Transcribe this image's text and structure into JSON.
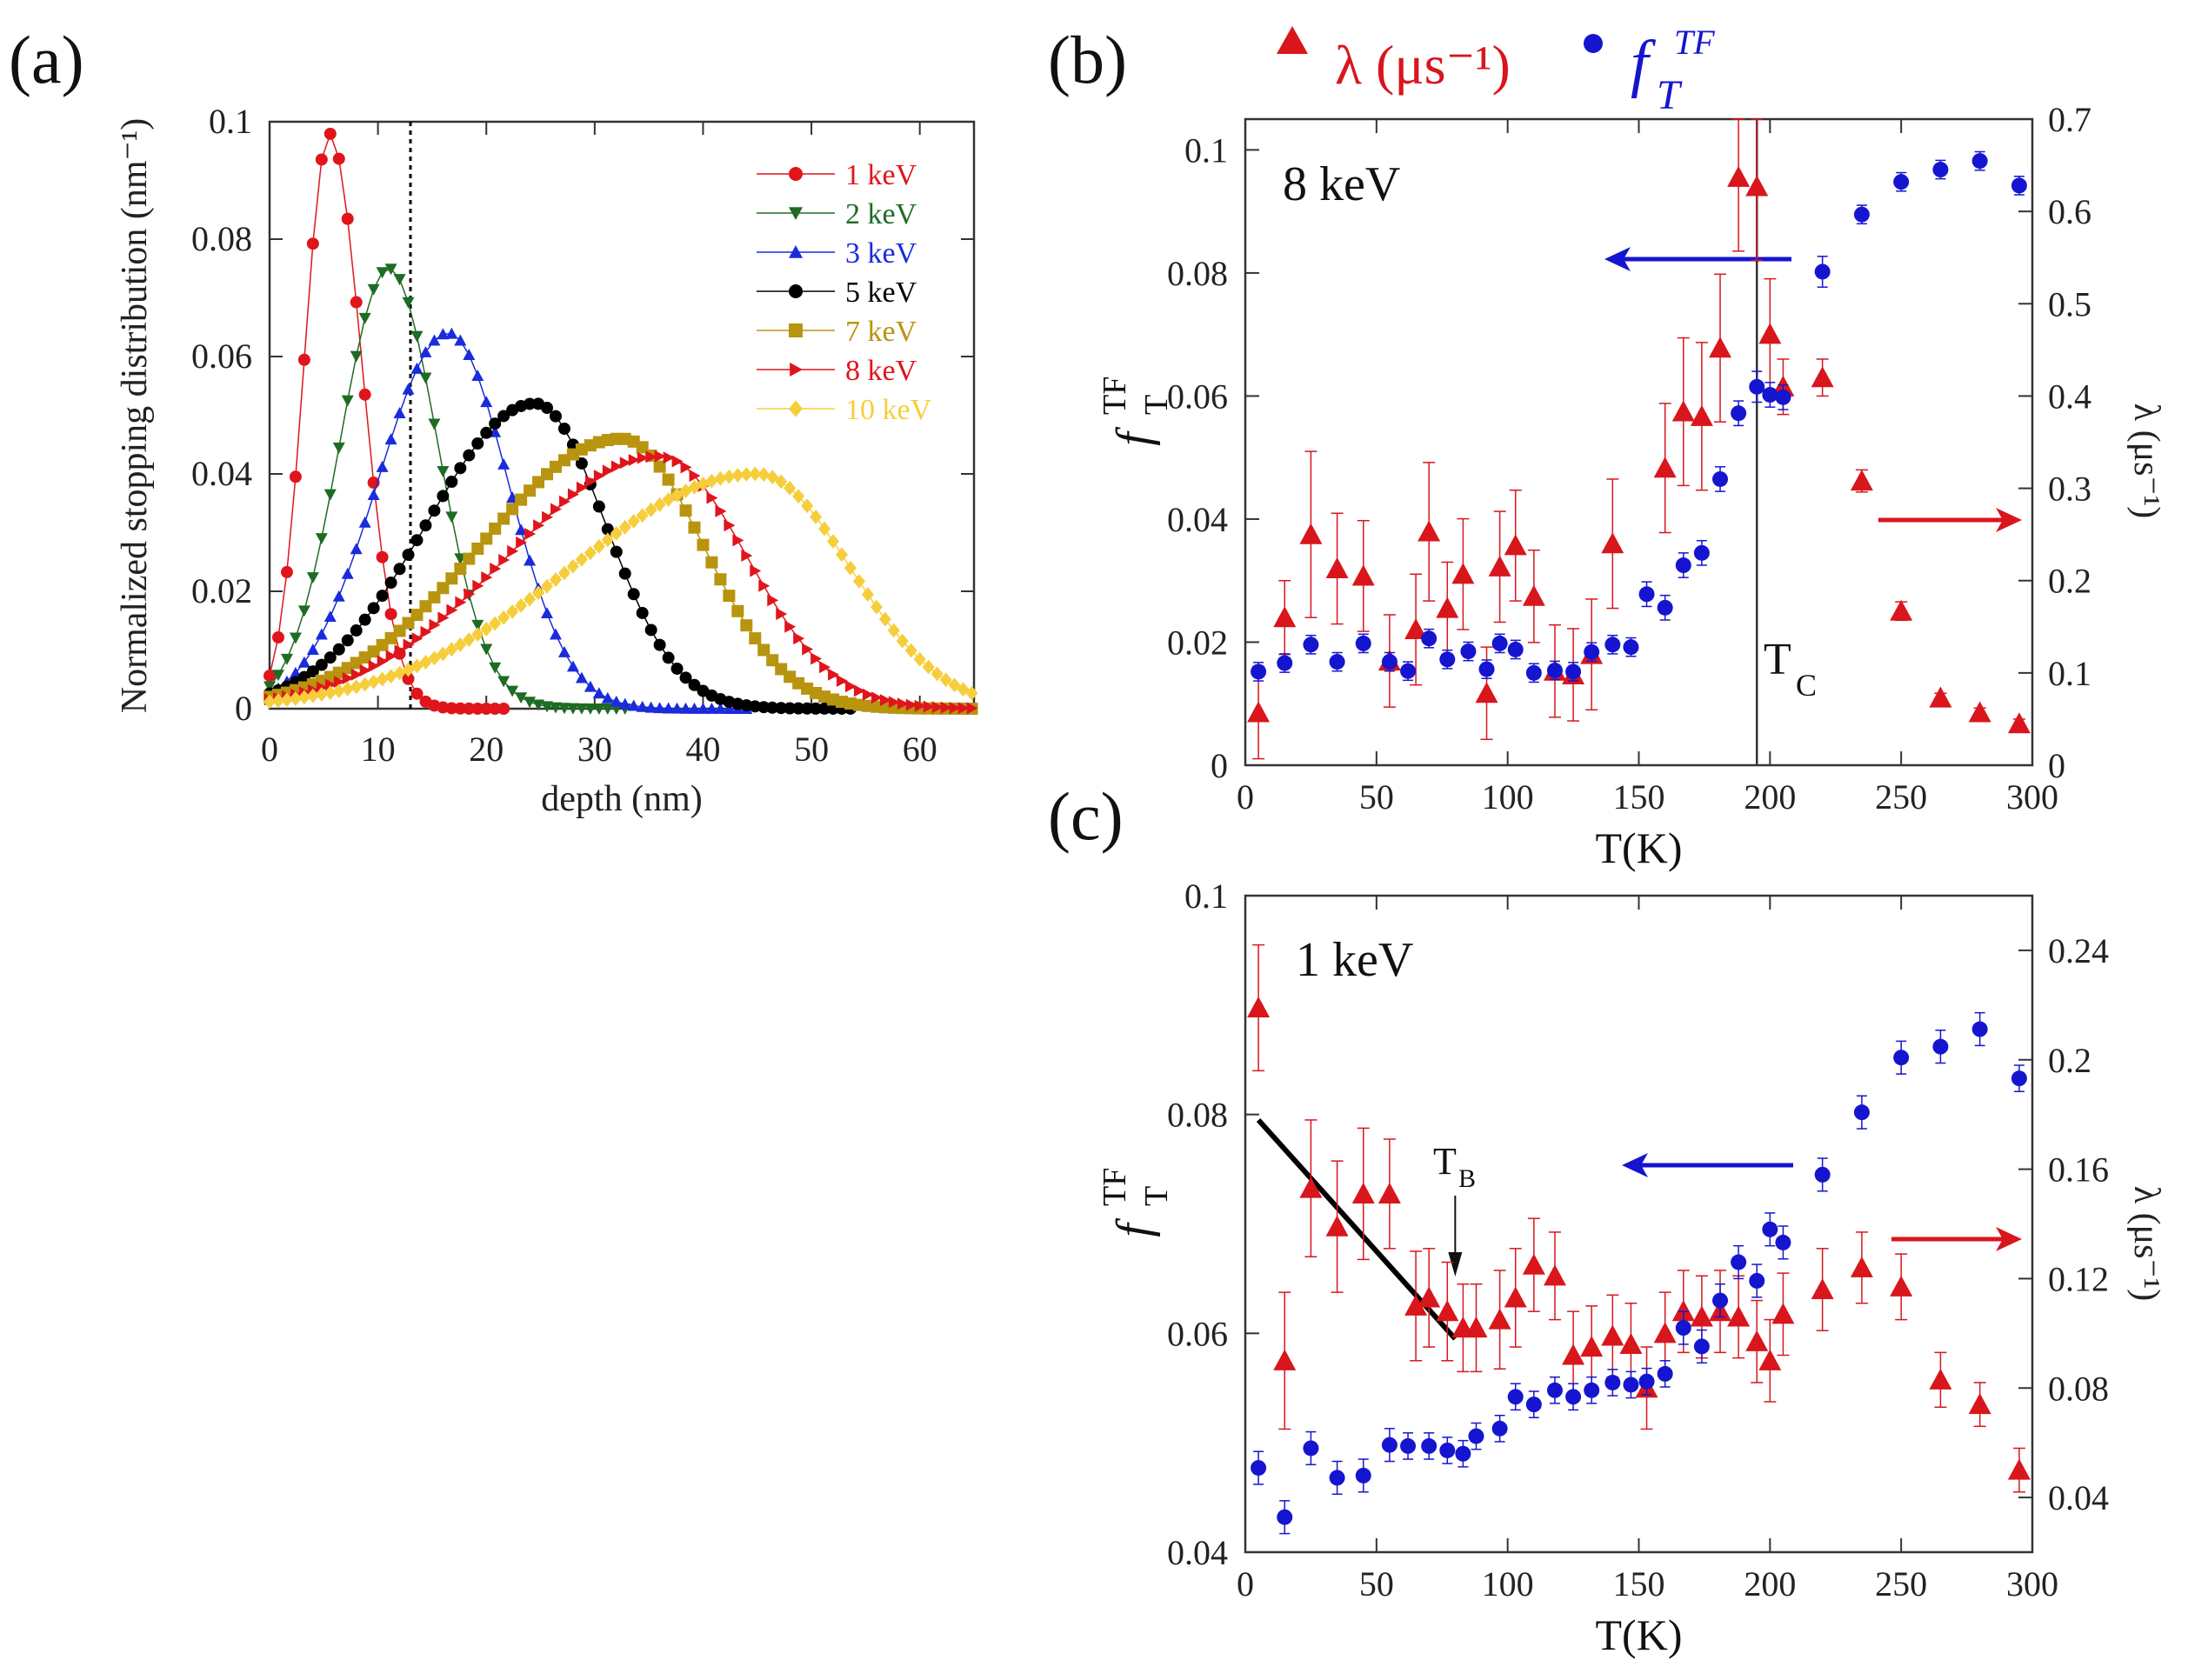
{
  "chart_data": [
    {
      "id": "a",
      "panel_label": "(a)",
      "type": "line",
      "xlabel": "depth (nm)",
      "ylabel": "Normalized stopping distribution (nm⁻¹)",
      "xlim": [
        0,
        65
      ],
      "ylim": [
        0,
        0.1
      ],
      "xticks": [
        "0",
        "10",
        "20",
        "30",
        "40",
        "50",
        "60"
      ],
      "yticks": [
        "0",
        "0.02",
        "0.04",
        "0.06",
        "0.08",
        "0.1"
      ],
      "dotted_line_x": 13,
      "legend_position": "top-right",
      "series": [
        {
          "name": "1 keV",
          "color": "#e0151b",
          "marker": "circle",
          "peak": 0.098,
          "mode": 5.5,
          "sigma_left": 2.3,
          "sigma_right": 3.0,
          "end": 22
        },
        {
          "name": "2 keV",
          "color": "#1e6b23",
          "marker": "triangle-down",
          "peak": 0.075,
          "mode": 11,
          "sigma_left": 4.5,
          "sigma_right": 4.5,
          "end": 33
        },
        {
          "name": "3 keV",
          "color": "#1a2bdc",
          "marker": "triangle-up",
          "peak": 0.064,
          "mode": 16.5,
          "sigma_left": 6.5,
          "sigma_right": 5.5,
          "end": 44
        },
        {
          "name": "5 keV",
          "color": "#000000",
          "marker": "circle",
          "peak": 0.052,
          "mode": 24.5,
          "sigma_left": 10,
          "sigma_right": 6.5,
          "end": 54
        },
        {
          "name": "7 keV",
          "color": "#b8940f",
          "marker": "square",
          "peak": 0.046,
          "mode": 32.5,
          "sigma_left": 13,
          "sigma_right": 7.5,
          "end": 65
        },
        {
          "name": "8 keV",
          "color": "#e0151b",
          "marker": "triangle-right",
          "peak": 0.043,
          "mode": 36,
          "sigma_left": 14,
          "sigma_right": 8,
          "end": 65
        },
        {
          "name": "10 keV",
          "color": "#f6ce3c",
          "marker": "diamond",
          "peak": 0.04,
          "mode": 45,
          "sigma_left": 17,
          "sigma_right": 8.5,
          "end": 65
        }
      ]
    },
    {
      "id": "b",
      "panel_label": "(b)",
      "type": "scatter",
      "energy_label": "8 keV",
      "xlabel": "T(K)",
      "ylabel_main": "f",
      "ylabel_sub": "T",
      "ylabel_sup": "TF",
      "y2label": "λ (μs⁻¹)",
      "xlim": [
        0,
        300
      ],
      "ylim": [
        0,
        0.105
      ],
      "y2lim": [
        0,
        0.7
      ],
      "xticks": [
        "0",
        "50",
        "100",
        "150",
        "200",
        "250",
        "300"
      ],
      "yticks": [
        "0",
        "0.02",
        "0.04",
        "0.06",
        "0.08",
        "0.1"
      ],
      "y2ticks": [
        "0",
        "0.1",
        "0.2",
        "0.3",
        "0.4",
        "0.5",
        "0.6",
        "0.7"
      ],
      "tc_label": "T",
      "tc_sub": "C",
      "tc_value": 195,
      "fT": {
        "name": "f_T^TF",
        "color": "#1515d0",
        "x": [
          5,
          15,
          25,
          35,
          45,
          55,
          62,
          70,
          77,
          85,
          92,
          97,
          103,
          110,
          118,
          125,
          132,
          140,
          147,
          153,
          160,
          167,
          174,
          181,
          188,
          195,
          200,
          205,
          220,
          235,
          250,
          265,
          280,
          295
        ],
        "y": [
          0.0152,
          0.0166,
          0.0196,
          0.0168,
          0.0198,
          0.0168,
          0.0153,
          0.0206,
          0.0172,
          0.0185,
          0.0156,
          0.0198,
          0.0188,
          0.015,
          0.0154,
          0.0152,
          0.0184,
          0.0196,
          0.0192,
          0.0278,
          0.0256,
          0.0325,
          0.0345,
          0.0465,
          0.0572,
          0.0615,
          0.0602,
          0.0598,
          0.0802,
          0.0895,
          0.0948,
          0.0968,
          0.0982,
          0.0942
        ],
        "err": [
          0.0015,
          0.0015,
          0.0015,
          0.0015,
          0.0015,
          0.0015,
          0.0015,
          0.0015,
          0.0015,
          0.0015,
          0.0015,
          0.0015,
          0.0015,
          0.0015,
          0.0015,
          0.0015,
          0.0015,
          0.0015,
          0.0015,
          0.002,
          0.002,
          0.002,
          0.002,
          0.002,
          0.002,
          0.0025,
          0.002,
          0.002,
          0.0025,
          0.0015,
          0.0015,
          0.0015,
          0.0015,
          0.0015
        ]
      },
      "lambda": {
        "name": "λ (μs⁻¹)",
        "color": "#d8161c",
        "x": [
          5,
          15,
          25,
          35,
          45,
          55,
          65,
          70,
          77,
          83,
          92,
          97,
          103,
          110,
          118,
          125,
          132,
          140,
          160,
          167,
          174,
          181,
          188,
          195,
          200,
          205,
          220,
          235,
          250,
          265,
          280,
          295
        ],
        "y": [
          0.057,
          0.16,
          0.25,
          0.213,
          0.205,
          0.113,
          0.147,
          0.253,
          0.17,
          0.207,
          0.078,
          0.215,
          0.238,
          0.183,
          0.102,
          0.098,
          0.12,
          0.24,
          0.322,
          0.383,
          0.378,
          0.452,
          0.637,
          0.627,
          0.467,
          0.41,
          0.42,
          0.308,
          0.167,
          0.073,
          0.057,
          0.045
        ],
        "err": [
          0.05,
          0.04,
          0.09,
          0.06,
          0.06,
          0.05,
          0.06,
          0.075,
          0.05,
          0.06,
          0.05,
          0.06,
          0.06,
          0.05,
          0.05,
          0.05,
          0.06,
          0.07,
          0.07,
          0.08,
          0.08,
          0.08,
          0.08,
          0.08,
          0.06,
          0.03,
          0.02,
          0.012,
          0.01,
          0.005,
          0.005,
          0.005
        ]
      },
      "arrow_to_left_axis_color": "#1515d0",
      "arrow_to_right_axis_color": "#d8161c"
    },
    {
      "id": "c",
      "panel_label": "(c)",
      "type": "scatter",
      "energy_label": "1 keV",
      "xlabel": "T(K)",
      "ylabel_main": "f",
      "ylabel_sub": "T",
      "ylabel_sup": "TF",
      "y2label": "λ (μs⁻¹)",
      "xlim": [
        0,
        300
      ],
      "ylim": [
        0.04,
        0.1
      ],
      "y2lim": [
        0.02,
        0.26
      ],
      "xticks": [
        "0",
        "50",
        "100",
        "150",
        "200",
        "250",
        "300"
      ],
      "yticks": [
        "0.04",
        "0.06",
        "0.08",
        "0.1"
      ],
      "y2ticks": [
        "0.04",
        "0.08",
        "0.12",
        "0.16",
        "0.2",
        "0.24"
      ],
      "tb_label": "T",
      "tb_sub": "B",
      "tb_value": 80,
      "fit_line": {
        "x": [
          5,
          80
        ],
        "y": [
          0.0795,
          0.0595
        ]
      },
      "fT": {
        "name": "f_T^TF",
        "color": "#1515d0",
        "x": [
          5,
          15,
          25,
          35,
          45,
          55,
          62,
          70,
          77,
          83,
          88,
          97,
          103,
          110,
          118,
          125,
          132,
          140,
          147,
          153,
          160,
          167,
          174,
          181,
          188,
          195,
          200,
          205,
          220,
          235,
          250,
          265,
          280,
          295
        ],
        "y": [
          0.0477,
          0.0432,
          0.0495,
          0.0468,
          0.047,
          0.0498,
          0.0497,
          0.0497,
          0.0493,
          0.049,
          0.0506,
          0.0513,
          0.0542,
          0.0535,
          0.0548,
          0.0542,
          0.0548,
          0.0555,
          0.0553,
          0.0556,
          0.0563,
          0.0605,
          0.0588,
          0.063,
          0.0665,
          0.0648,
          0.0695,
          0.0683,
          0.0745,
          0.0802,
          0.0852,
          0.0862,
          0.0878,
          0.0833
        ],
        "err": [
          0.0015,
          0.0015,
          0.0015,
          0.0015,
          0.0015,
          0.0015,
          0.0012,
          0.0012,
          0.0012,
          0.0012,
          0.0012,
          0.0012,
          0.0012,
          0.0012,
          0.0012,
          0.0012,
          0.0012,
          0.0012,
          0.0012,
          0.0012,
          0.0012,
          0.0015,
          0.0015,
          0.0015,
          0.0015,
          0.0015,
          0.0015,
          0.0015,
          0.0015,
          0.0015,
          0.0015,
          0.0015,
          0.0015,
          0.0012
        ]
      },
      "lambda": {
        "name": "λ (μs⁻¹)",
        "color": "#d8161c",
        "x": [
          5,
          15,
          25,
          35,
          45,
          55,
          65,
          70,
          77,
          83,
          88,
          97,
          103,
          110,
          118,
          125,
          132,
          140,
          147,
          153,
          160,
          167,
          174,
          181,
          188,
          195,
          200,
          205,
          220,
          235,
          250,
          265,
          280,
          295
        ],
        "y": [
          0.219,
          0.09,
          0.153,
          0.139,
          0.151,
          0.151,
          0.11,
          0.113,
          0.108,
          0.102,
          0.102,
          0.105,
          0.113,
          0.125,
          0.121,
          0.092,
          0.095,
          0.099,
          0.096,
          0.08,
          0.1,
          0.108,
          0.106,
          0.108,
          0.106,
          0.097,
          0.09,
          0.107,
          0.116,
          0.124,
          0.117,
          0.083,
          0.074,
          0.05
        ],
        "err": [
          0.023,
          0.025,
          0.025,
          0.024,
          0.024,
          0.02,
          0.02,
          0.018,
          0.018,
          0.016,
          0.016,
          0.018,
          0.018,
          0.017,
          0.016,
          0.016,
          0.015,
          0.015,
          0.015,
          0.015,
          0.015,
          0.015,
          0.015,
          0.015,
          0.015,
          0.015,
          0.015,
          0.015,
          0.015,
          0.013,
          0.012,
          0.01,
          0.008,
          0.008
        ]
      },
      "arrow_to_left_axis_color": "#1515d0",
      "arrow_to_right_axis_color": "#d8161c"
    }
  ],
  "top_legend": {
    "lambda_label": "λ (μs⁻¹)",
    "lambda_color": "#d8161c",
    "f_main": "f",
    "f_sub": "T",
    "f_sup": "TF",
    "f_color": "#1515d0"
  }
}
